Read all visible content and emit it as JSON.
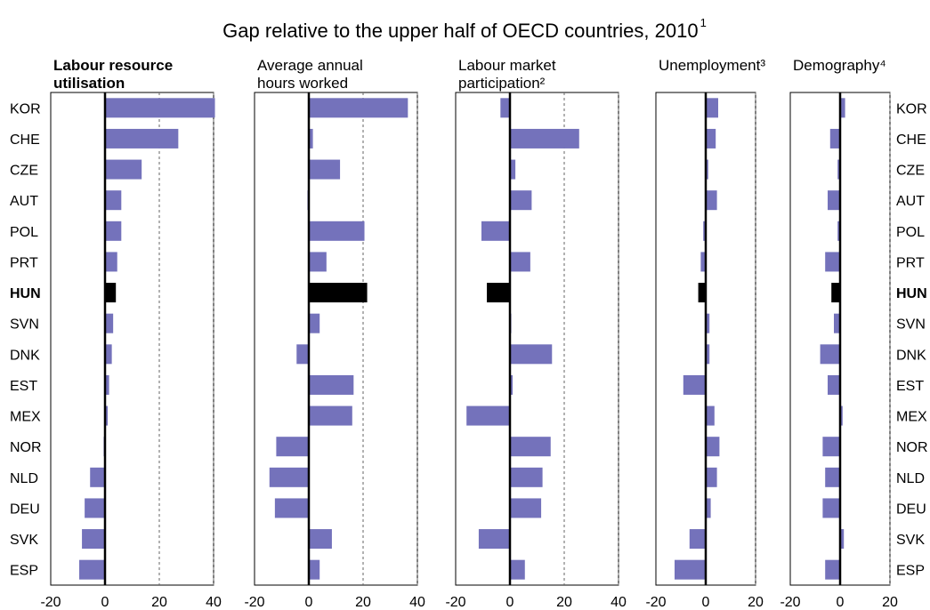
{
  "chart_data": {
    "type": "bar",
    "orientation": "horizontal",
    "title": "Gap relative to the upper half of OECD countries, 2010",
    "title_note": "1",
    "categories": [
      "KOR",
      "CHE",
      "CZE",
      "AUT",
      "POL",
      "PRT",
      "HUN",
      "SVN",
      "DNK",
      "EST",
      "MEX",
      "NOR",
      "NLD",
      "DEU",
      "SVK",
      "ESP"
    ],
    "highlight_category": "HUN",
    "colors": {
      "bar": "#7472BB",
      "highlight": "#000000",
      "zero_line": "#000000",
      "grid": "#666666"
    },
    "grid": "dashed vertical",
    "panels": [
      {
        "title_lines": [
          "Labour resource",
          "utilisation"
        ],
        "bold": true,
        "xlim": [
          -20,
          40
        ],
        "ticks": [
          -20,
          0,
          20,
          40
        ],
        "values": [
          40.5,
          27,
          13.5,
          6,
          6,
          4.5,
          4,
          3,
          2.5,
          1.5,
          1,
          -0.5,
          -5.5,
          -7.5,
          -8.5,
          -9.5
        ]
      },
      {
        "title_lines": [
          "Average annual",
          "hours worked"
        ],
        "bold": false,
        "xlim": [
          -20,
          40
        ],
        "ticks": [
          -20,
          0,
          20,
          40
        ],
        "values": [
          36.5,
          1.5,
          11.5,
          -0.5,
          20.5,
          6.5,
          21.5,
          4,
          -4.5,
          16.5,
          16,
          -12,
          -14.5,
          -12.5,
          8.5,
          4
        ]
      },
      {
        "title_lines": [
          "Labour market",
          "participation²"
        ],
        "bold": false,
        "xlim": [
          -20,
          40
        ],
        "ticks": [
          -20,
          0,
          20,
          40
        ],
        "values": [
          -3.5,
          25.5,
          2,
          8,
          -10.5,
          7.5,
          -8.5,
          0.5,
          15.5,
          1,
          -16,
          15,
          12,
          11.5,
          -11.5,
          5.5
        ]
      },
      {
        "title_lines": [
          "Unemployment³"
        ],
        "bold": false,
        "xlim": [
          -20,
          20
        ],
        "ticks": [
          -20,
          0,
          20
        ],
        "values": [
          5,
          4,
          1,
          4.5,
          -1,
          -2,
          -3,
          1.5,
          1.5,
          -9,
          3.5,
          5.5,
          4.5,
          2,
          -6.5,
          -12.5
        ]
      },
      {
        "title_lines": [
          "Demography⁴"
        ],
        "bold": false,
        "xlim": [
          -20,
          20
        ],
        "ticks": [
          -20,
          0,
          20
        ],
        "values": [
          2,
          -4,
          -1,
          -5,
          -1,
          -6,
          -3.5,
          -2.5,
          -8,
          -5,
          1,
          -7,
          -6,
          -7,
          1.5,
          -6
        ]
      }
    ]
  }
}
